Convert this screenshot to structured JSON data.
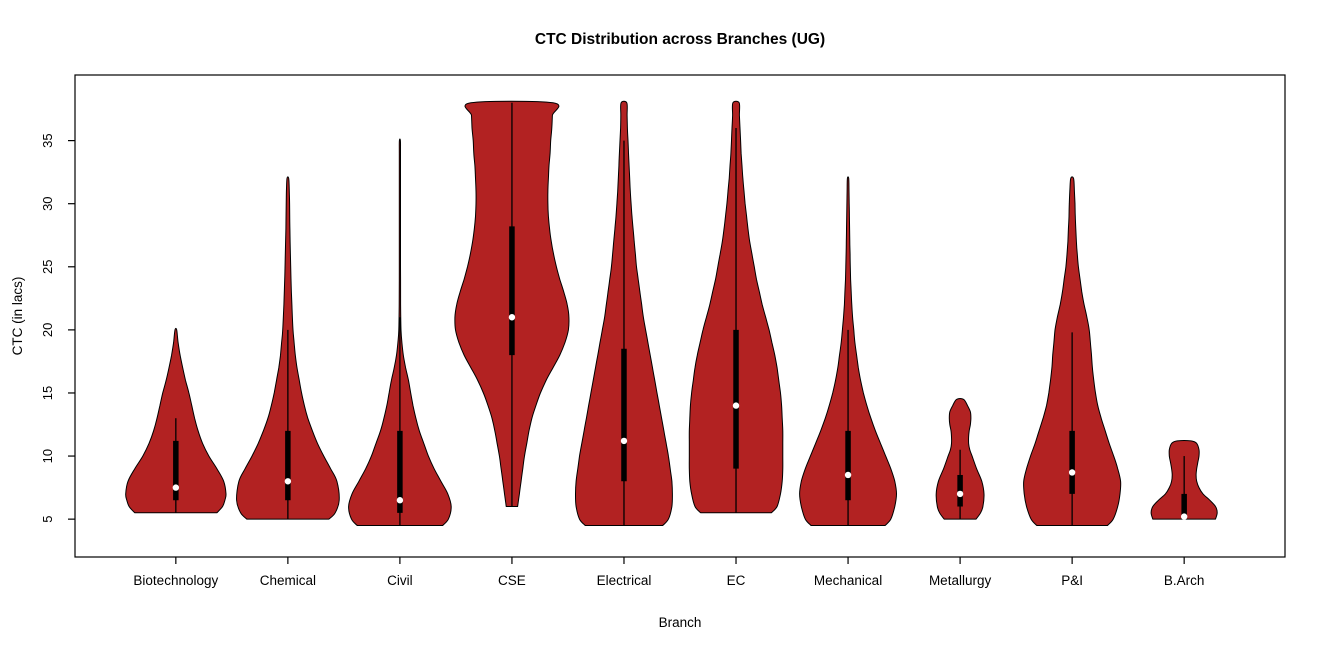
{
  "chart_data": {
    "type": "violin",
    "title": "CTC Distribution across Branches (UG)",
    "xlabel": "Branch",
    "ylabel": "CTC (in lacs)",
    "ylim": [
      2.0,
      40.2
    ],
    "yticks": [
      5,
      10,
      15,
      20,
      25,
      30,
      35
    ],
    "grid": false,
    "legend": "none",
    "plot_bg": "#FFFFFF",
    "fill_color": "#B22222",
    "outline_color": "#000000",
    "box_color": "#000000",
    "median_color": "#FFFFFF",
    "categories": [
      "Biotechnology",
      "Chemical",
      "Civil",
      "CSE",
      "Electrical",
      "EC",
      "Mechanical",
      "Metallurgy",
      "P&I",
      "B.Arch"
    ],
    "violins": [
      {
        "label": "Biotechnology",
        "min": 5.5,
        "max": 20,
        "q1": 6.5,
        "q3": 11.2,
        "median": 7.5,
        "whisker_low": 5.5,
        "whisker_high": 13,
        "profile": [
          [
            5.5,
            0.72
          ],
          [
            6,
            0.82
          ],
          [
            6.5,
            0.86
          ],
          [
            7,
            0.88
          ],
          [
            8,
            0.84
          ],
          [
            9,
            0.72
          ],
          [
            10,
            0.58
          ],
          [
            11,
            0.47
          ],
          [
            12,
            0.39
          ],
          [
            13,
            0.33
          ],
          [
            14,
            0.28
          ],
          [
            15,
            0.23
          ],
          [
            16,
            0.17
          ],
          [
            17,
            0.12
          ],
          [
            18,
            0.075
          ],
          [
            19,
            0.04
          ],
          [
            20,
            0.015
          ]
        ]
      },
      {
        "label": "Chemical",
        "min": 5,
        "max": 32,
        "q1": 6.5,
        "q3": 12,
        "median": 8,
        "whisker_low": 5,
        "whisker_high": 20,
        "profile": [
          [
            5,
            0.72
          ],
          [
            5.5,
            0.83
          ],
          [
            6.5,
            0.9
          ],
          [
            8,
            0.86
          ],
          [
            9,
            0.75
          ],
          [
            10,
            0.63
          ],
          [
            11,
            0.52
          ],
          [
            12,
            0.43
          ],
          [
            13,
            0.35
          ],
          [
            14,
            0.29
          ],
          [
            15,
            0.24
          ],
          [
            16,
            0.2
          ],
          [
            17,
            0.16
          ],
          [
            18,
            0.13
          ],
          [
            19,
            0.11
          ],
          [
            20,
            0.09
          ],
          [
            22,
            0.07
          ],
          [
            24,
            0.055
          ],
          [
            26,
            0.045
          ],
          [
            28,
            0.035
          ],
          [
            30,
            0.03
          ],
          [
            31,
            0.025
          ],
          [
            32,
            0.015
          ]
        ]
      },
      {
        "label": "Civil",
        "min": 4.5,
        "max": 35,
        "q1": 5.5,
        "q3": 12,
        "median": 6.5,
        "whisker_low": 4.5,
        "whisker_high": 21,
        "profile": [
          [
            4.5,
            0.75
          ],
          [
            5,
            0.85
          ],
          [
            6,
            0.9
          ],
          [
            7,
            0.84
          ],
          [
            8,
            0.72
          ],
          [
            9,
            0.6
          ],
          [
            10,
            0.5
          ],
          [
            11,
            0.42
          ],
          [
            12,
            0.34
          ],
          [
            13,
            0.28
          ],
          [
            14,
            0.23
          ],
          [
            15,
            0.19
          ],
          [
            16,
            0.15
          ],
          [
            17,
            0.1
          ],
          [
            18,
            0.06
          ],
          [
            19,
            0.035
          ],
          [
            20,
            0.02
          ],
          [
            22,
            0.013
          ],
          [
            25,
            0.011
          ],
          [
            28,
            0.01
          ],
          [
            31,
            0.01
          ],
          [
            34,
            0.01
          ],
          [
            35,
            0.008
          ]
        ]
      },
      {
        "label": "CSE",
        "min": 6,
        "max": 38,
        "q1": 18,
        "q3": 28.2,
        "median": 21,
        "whisker_low": 6,
        "whisker_high": 38,
        "profile": [
          [
            6,
            0.1
          ],
          [
            7,
            0.13
          ],
          [
            8,
            0.16
          ],
          [
            9,
            0.19
          ],
          [
            10,
            0.22
          ],
          [
            11,
            0.26
          ],
          [
            12,
            0.3
          ],
          [
            13,
            0.35
          ],
          [
            14,
            0.42
          ],
          [
            15,
            0.5
          ],
          [
            16,
            0.6
          ],
          [
            17,
            0.72
          ],
          [
            18,
            0.84
          ],
          [
            19,
            0.93
          ],
          [
            20,
            0.99
          ],
          [
            21,
            1.0
          ],
          [
            22,
            0.97
          ],
          [
            23,
            0.91
          ],
          [
            24,
            0.84
          ],
          [
            25,
            0.78
          ],
          [
            26,
            0.73
          ],
          [
            27,
            0.69
          ],
          [
            28,
            0.66
          ],
          [
            29,
            0.64
          ],
          [
            30,
            0.63
          ],
          [
            31,
            0.63
          ],
          [
            32,
            0.64
          ],
          [
            33,
            0.65
          ],
          [
            34,
            0.67
          ],
          [
            35,
            0.68
          ],
          [
            36,
            0.7
          ],
          [
            37,
            0.71
          ],
          [
            38,
            0.72
          ]
        ]
      },
      {
        "label": "Electrical",
        "min": 4.5,
        "max": 38,
        "q1": 8,
        "q3": 18.5,
        "median": 11.2,
        "whisker_low": 4.5,
        "whisker_high": 35,
        "profile": [
          [
            4.5,
            0.68
          ],
          [
            5,
            0.78
          ],
          [
            6,
            0.84
          ],
          [
            7,
            0.85
          ],
          [
            8,
            0.84
          ],
          [
            9,
            0.81
          ],
          [
            10,
            0.78
          ],
          [
            11,
            0.74
          ],
          [
            12,
            0.7
          ],
          [
            13,
            0.66
          ],
          [
            14,
            0.62
          ],
          [
            15,
            0.58
          ],
          [
            16,
            0.54
          ],
          [
            17,
            0.5
          ],
          [
            18,
            0.46
          ],
          [
            19,
            0.42
          ],
          [
            20,
            0.38
          ],
          [
            21,
            0.34
          ],
          [
            22,
            0.31
          ],
          [
            23,
            0.28
          ],
          [
            24,
            0.25
          ],
          [
            25,
            0.22
          ],
          [
            26,
            0.2
          ],
          [
            27,
            0.18
          ],
          [
            28,
            0.16
          ],
          [
            29,
            0.14
          ],
          [
            30,
            0.125
          ],
          [
            31,
            0.11
          ],
          [
            32,
            0.1
          ],
          [
            33,
            0.09
          ],
          [
            34,
            0.08
          ],
          [
            35,
            0.07
          ],
          [
            36,
            0.06
          ],
          [
            37,
            0.055
          ],
          [
            38,
            0.05
          ]
        ]
      },
      {
        "label": "EC",
        "min": 5.5,
        "max": 38,
        "q1": 9,
        "q3": 20,
        "median": 14,
        "whisker_low": 5.5,
        "whisker_high": 36,
        "profile": [
          [
            5.5,
            0.62
          ],
          [
            6,
            0.72
          ],
          [
            7,
            0.78
          ],
          [
            8,
            0.81
          ],
          [
            9,
            0.82
          ],
          [
            10,
            0.82
          ],
          [
            11,
            0.82
          ],
          [
            12,
            0.82
          ],
          [
            13,
            0.81
          ],
          [
            14,
            0.8
          ],
          [
            15,
            0.78
          ],
          [
            16,
            0.75
          ],
          [
            17,
            0.72
          ],
          [
            18,
            0.68
          ],
          [
            19,
            0.63
          ],
          [
            20,
            0.58
          ],
          [
            21,
            0.52
          ],
          [
            22,
            0.46
          ],
          [
            23,
            0.41
          ],
          [
            24,
            0.36
          ],
          [
            25,
            0.32
          ],
          [
            26,
            0.28
          ],
          [
            27,
            0.24
          ],
          [
            28,
            0.21
          ],
          [
            29,
            0.185
          ],
          [
            30,
            0.16
          ],
          [
            31,
            0.14
          ],
          [
            32,
            0.12
          ],
          [
            33,
            0.105
          ],
          [
            34,
            0.09
          ],
          [
            35,
            0.08
          ],
          [
            36,
            0.07
          ],
          [
            37,
            0.06
          ],
          [
            38,
            0.055
          ]
        ]
      },
      {
        "label": "Mechanical",
        "min": 4.5,
        "max": 32,
        "q1": 6.5,
        "q3": 12,
        "median": 8.5,
        "whisker_low": 4.5,
        "whisker_high": 20,
        "profile": [
          [
            4.5,
            0.65
          ],
          [
            5,
            0.75
          ],
          [
            6,
            0.82
          ],
          [
            7,
            0.85
          ],
          [
            8,
            0.82
          ],
          [
            9,
            0.75
          ],
          [
            10,
            0.66
          ],
          [
            11,
            0.57
          ],
          [
            12,
            0.48
          ],
          [
            13,
            0.4
          ],
          [
            14,
            0.33
          ],
          [
            15,
            0.27
          ],
          [
            16,
            0.22
          ],
          [
            17,
            0.18
          ],
          [
            18,
            0.15
          ],
          [
            19,
            0.12
          ],
          [
            20,
            0.1
          ],
          [
            21,
            0.08
          ],
          [
            22,
            0.065
          ],
          [
            23,
            0.055
          ],
          [
            24,
            0.045
          ],
          [
            25,
            0.04
          ],
          [
            26,
            0.035
          ],
          [
            27,
            0.03
          ],
          [
            28,
            0.027
          ],
          [
            29,
            0.024
          ],
          [
            30,
            0.02
          ],
          [
            31,
            0.017
          ],
          [
            32,
            0.012
          ]
        ]
      },
      {
        "label": "Metallurgy",
        "min": 5,
        "max": 14.5,
        "q1": 6,
        "q3": 8.5,
        "median": 7,
        "whisker_low": 5,
        "whisker_high": 10.5,
        "profile": [
          [
            5,
            0.28
          ],
          [
            5.5,
            0.36
          ],
          [
            6,
            0.4
          ],
          [
            7,
            0.42
          ],
          [
            8,
            0.38
          ],
          [
            9,
            0.29
          ],
          [
            10,
            0.21
          ],
          [
            10.5,
            0.17
          ],
          [
            11,
            0.15
          ],
          [
            11.5,
            0.15
          ],
          [
            12,
            0.16
          ],
          [
            12.5,
            0.18
          ],
          [
            13,
            0.19
          ],
          [
            13.5,
            0.18
          ],
          [
            14,
            0.13
          ],
          [
            14.5,
            0.06
          ]
        ]
      },
      {
        "label": "P&I",
        "min": 4.5,
        "max": 32,
        "q1": 7,
        "q3": 12,
        "median": 8.7,
        "whisker_low": 4.5,
        "whisker_high": 19.8,
        "profile": [
          [
            4.5,
            0.62
          ],
          [
            5,
            0.72
          ],
          [
            6,
            0.8
          ],
          [
            7,
            0.84
          ],
          [
            8,
            0.85
          ],
          [
            9,
            0.8
          ],
          [
            10,
            0.73
          ],
          [
            11,
            0.65
          ],
          [
            12,
            0.58
          ],
          [
            13,
            0.51
          ],
          [
            14,
            0.45
          ],
          [
            15,
            0.41
          ],
          [
            16,
            0.38
          ],
          [
            17,
            0.355
          ],
          [
            18,
            0.34
          ],
          [
            19,
            0.32
          ],
          [
            20,
            0.3
          ],
          [
            21,
            0.26
          ],
          [
            22,
            0.21
          ],
          [
            23,
            0.17
          ],
          [
            24,
            0.14
          ],
          [
            25,
            0.11
          ],
          [
            26,
            0.09
          ],
          [
            27,
            0.075
          ],
          [
            28,
            0.065
          ],
          [
            29,
            0.055
          ],
          [
            30,
            0.05
          ],
          [
            31,
            0.04
          ],
          [
            32,
            0.025
          ]
        ]
      },
      {
        "label": "B.Arch",
        "min": 5,
        "max": 11.2,
        "q1": 5,
        "q3": 7,
        "median": 5.2,
        "whisker_low": 5,
        "whisker_high": 10,
        "profile": [
          [
            5,
            0.55
          ],
          [
            5.5,
            0.58
          ],
          [
            6,
            0.55
          ],
          [
            6.5,
            0.45
          ],
          [
            7,
            0.33
          ],
          [
            7.5,
            0.26
          ],
          [
            8,
            0.22
          ],
          [
            8.5,
            0.21
          ],
          [
            9,
            0.22
          ],
          [
            9.5,
            0.24
          ],
          [
            10,
            0.26
          ],
          [
            10.5,
            0.26
          ],
          [
            11,
            0.22
          ],
          [
            11.2,
            0.12
          ]
        ]
      }
    ]
  }
}
